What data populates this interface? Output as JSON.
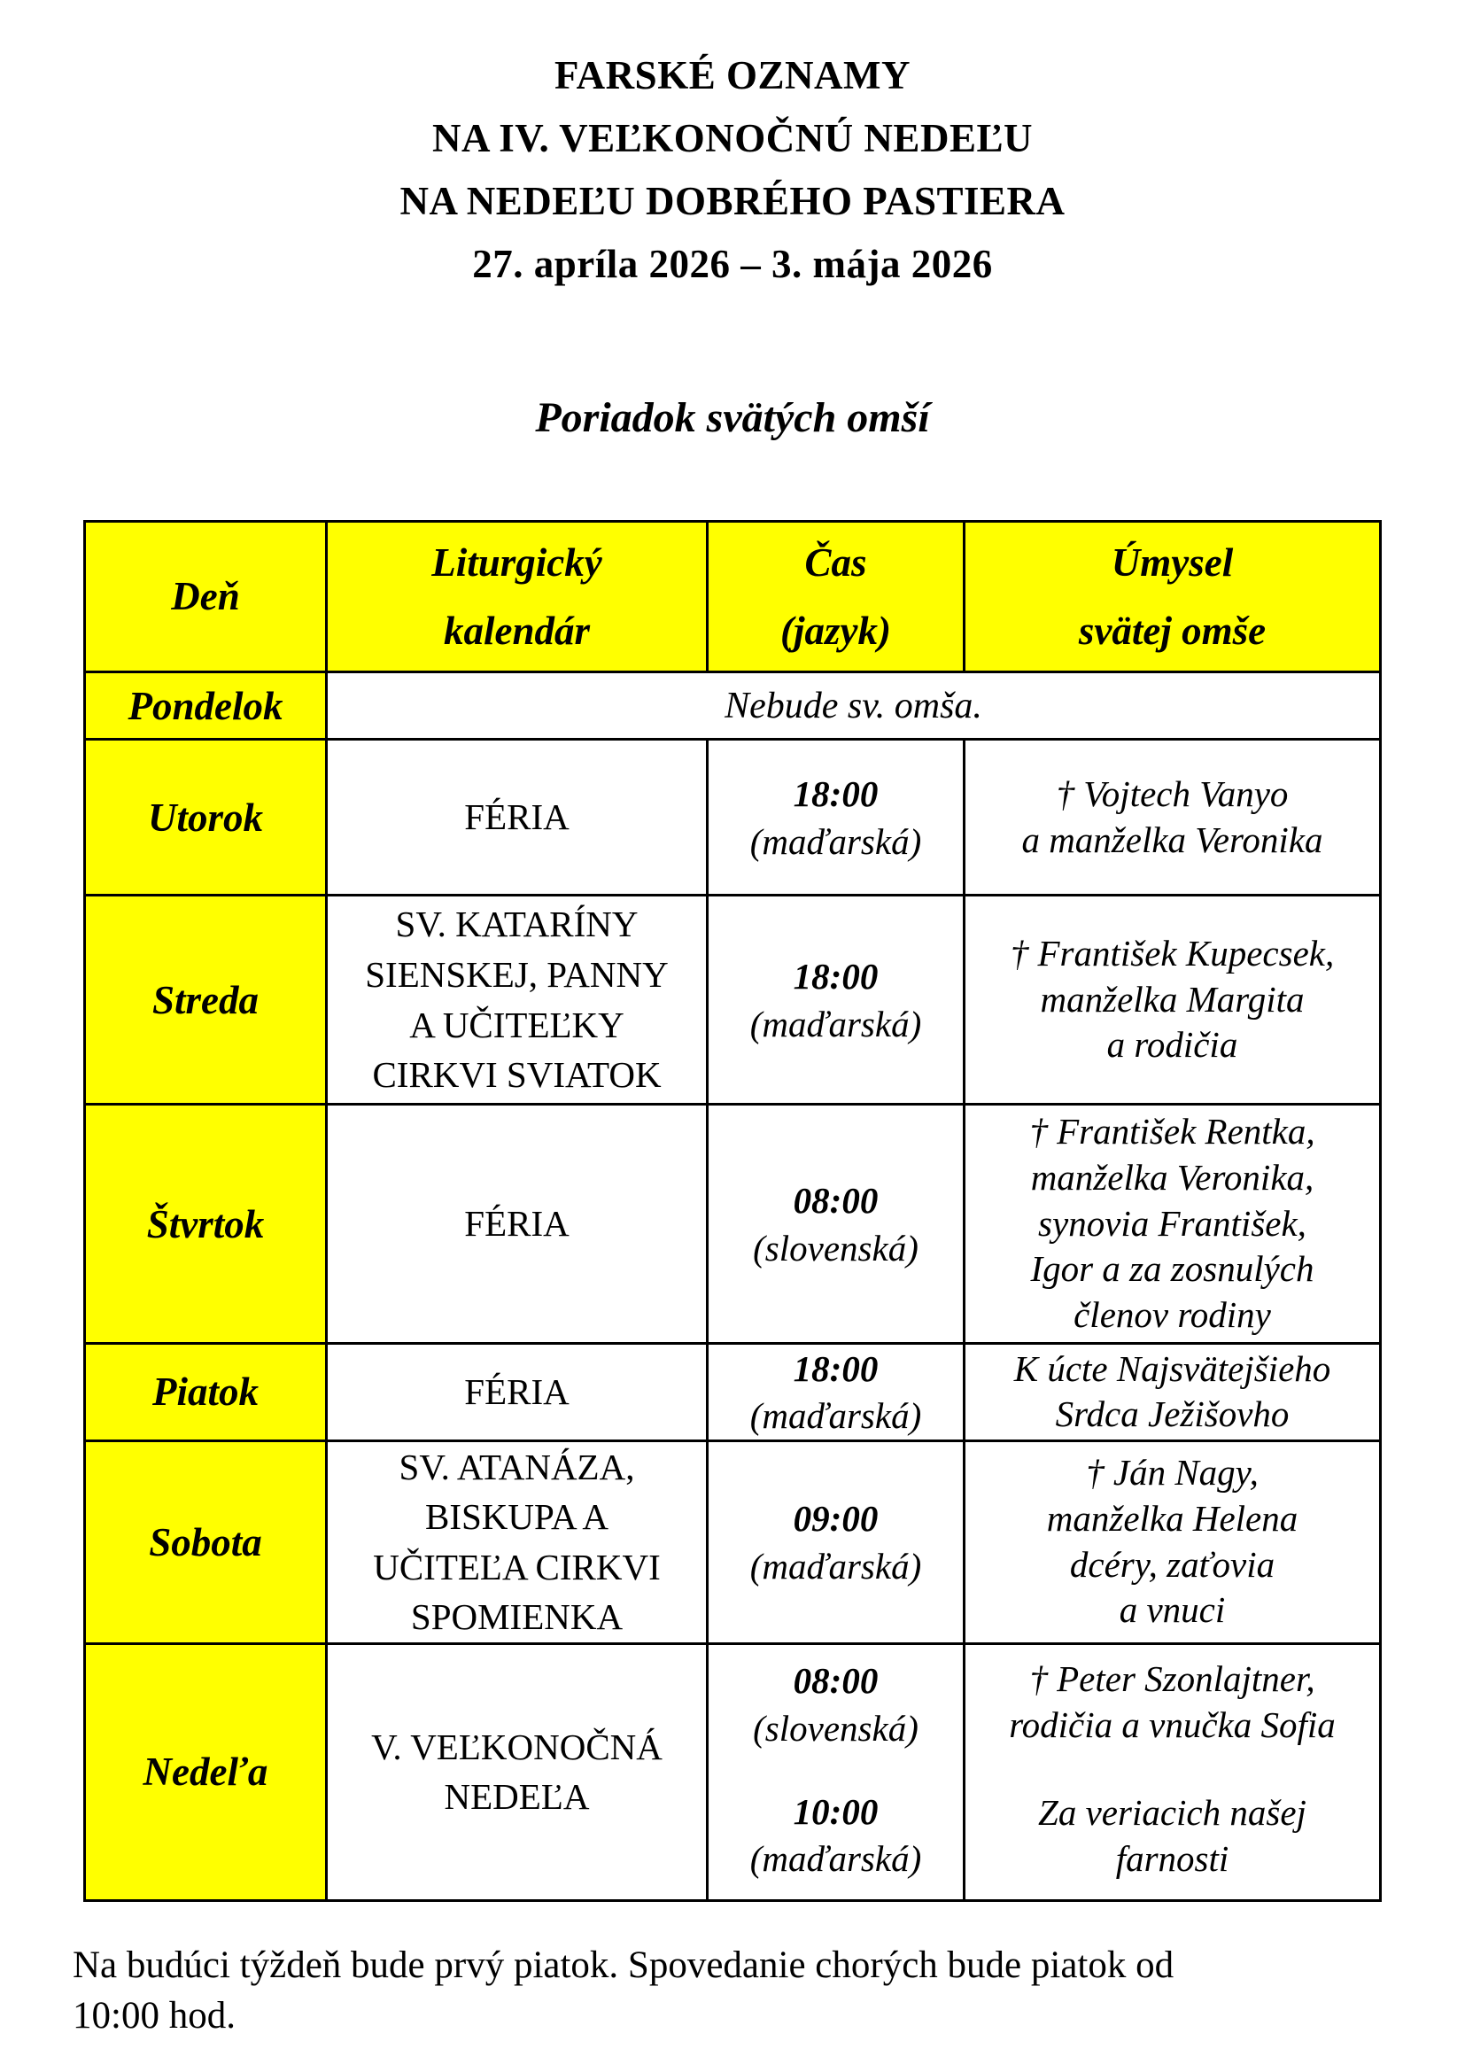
{
  "document": {
    "title_lines": [
      "FARSKÉ OZNAMY",
      "NA IV. VEĽKONOČNÚ NEDEĽU",
      "NA NEDEĽU DOBRÉHO PASTIERA",
      "27. apríla 2026 – 3. mája 2026"
    ],
    "subtitle": "Poriadok svätých omší",
    "footer_lines": [
      "Na budúci týždeň bude prvý piatok. Spovedanie chorých bude piatok od",
      "10:00 hod."
    ]
  },
  "colors": {
    "highlight_yellow": "#ffff00",
    "text": "#000000",
    "table_border": "#000000",
    "page_background": "#ffffff"
  },
  "table": {
    "headers": [
      [
        "Deň"
      ],
      [
        "Liturgický",
        "kalendár"
      ],
      [
        "Čas",
        "(jazyk)"
      ],
      [
        "Úmysel",
        "svätej omše"
      ]
    ],
    "rows": [
      {
        "day": "Pondelok",
        "note": "Nebude sv. omša."
      },
      {
        "day": "Utorok",
        "calendar": [
          "FÉRIA"
        ],
        "masses": [
          {
            "time": "18:00",
            "language": "(maďarská)"
          }
        ],
        "intentions": [
          [
            "† Vojtech Vanyo",
            "a manželka Veronika"
          ]
        ]
      },
      {
        "day": "Streda",
        "calendar": [
          "SV. KATARÍNY",
          "SIENSKEJ, PANNY",
          "A UČITEĽKY",
          "CIRKVI SVIATOK"
        ],
        "masses": [
          {
            "time": "18:00",
            "language": "(maďarská)"
          }
        ],
        "intentions": [
          [
            "† František Kupecsek,",
            "manželka Margita",
            "a rodičia"
          ]
        ]
      },
      {
        "day": "Štvrtok",
        "calendar": [
          "FÉRIA"
        ],
        "masses": [
          {
            "time": "08:00",
            "language": "(slovenská)"
          }
        ],
        "intentions": [
          [
            "† František Rentka,",
            "manželka Veronika,",
            "synovia František,",
            "Igor a za zosnulých",
            "členov rodiny"
          ]
        ]
      },
      {
        "day": "Piatok",
        "calendar": [
          "FÉRIA"
        ],
        "masses": [
          {
            "time": "18:00",
            "language": "(maďarská)"
          }
        ],
        "intentions": [
          [
            "K úcte Najsvätejšieho",
            "Srdca Ježišovho"
          ]
        ]
      },
      {
        "day": "Sobota",
        "calendar": [
          "SV. ATANÁZA,",
          "BISKUPA A",
          "UČITEĽA CIRKVI",
          "SPOMIENKA"
        ],
        "masses": [
          {
            "time": "09:00",
            "language": "(maďarská)"
          }
        ],
        "intentions": [
          [
            "† Ján Nagy,",
            "manželka Helena",
            "dcéry, zaťovia",
            "a vnuci"
          ]
        ]
      },
      {
        "day": "Nedeľa",
        "calendar": [
          "V. VEĽKONOČNÁ",
          "NEDEĽA"
        ],
        "masses": [
          {
            "time": "08:00",
            "language": "(slovenská)"
          },
          {
            "time": "10:00",
            "language": "(maďarská)"
          }
        ],
        "intentions": [
          [
            "† Peter Szonlajtner,",
            "rodičia a vnučka Sofia"
          ],
          [
            "Za veriacich našej",
            "farnosti"
          ]
        ]
      }
    ]
  }
}
